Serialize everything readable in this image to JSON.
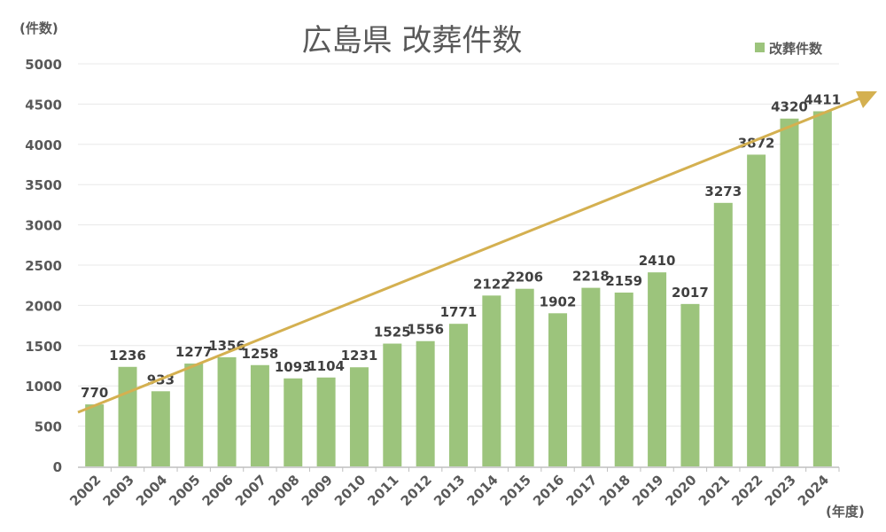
{
  "chart_data": {
    "type": "bar",
    "title": "広島県 改葬件数",
    "ylabel": "(件数)",
    "xlabel": "(年度)",
    "ylim": [
      0,
      5000
    ],
    "yticks": [
      0,
      500,
      1000,
      1500,
      2000,
      2500,
      3000,
      3500,
      4000,
      4500,
      5000
    ],
    "grid": true,
    "legend_position": "top-right",
    "categories": [
      "2002",
      "2003",
      "2004",
      "2005",
      "2006",
      "2007",
      "2008",
      "2009",
      "2010",
      "2011",
      "2012",
      "2013",
      "2014",
      "2015",
      "2016",
      "2017",
      "2018",
      "2019",
      "2020",
      "2021",
      "2022",
      "2023",
      "2024"
    ],
    "series": [
      {
        "name": "改葬件数",
        "values": [
          770,
          1236,
          933,
          1277,
          1356,
          1258,
          1093,
          1104,
          1231,
          1525,
          1556,
          1771,
          2122,
          2206,
          1902,
          2218,
          2159,
          2410,
          2017,
          3273,
          3872,
          4320,
          4411
        ],
        "color": "#9cc47c"
      }
    ],
    "trend_arrow_color": "#d4b050"
  }
}
